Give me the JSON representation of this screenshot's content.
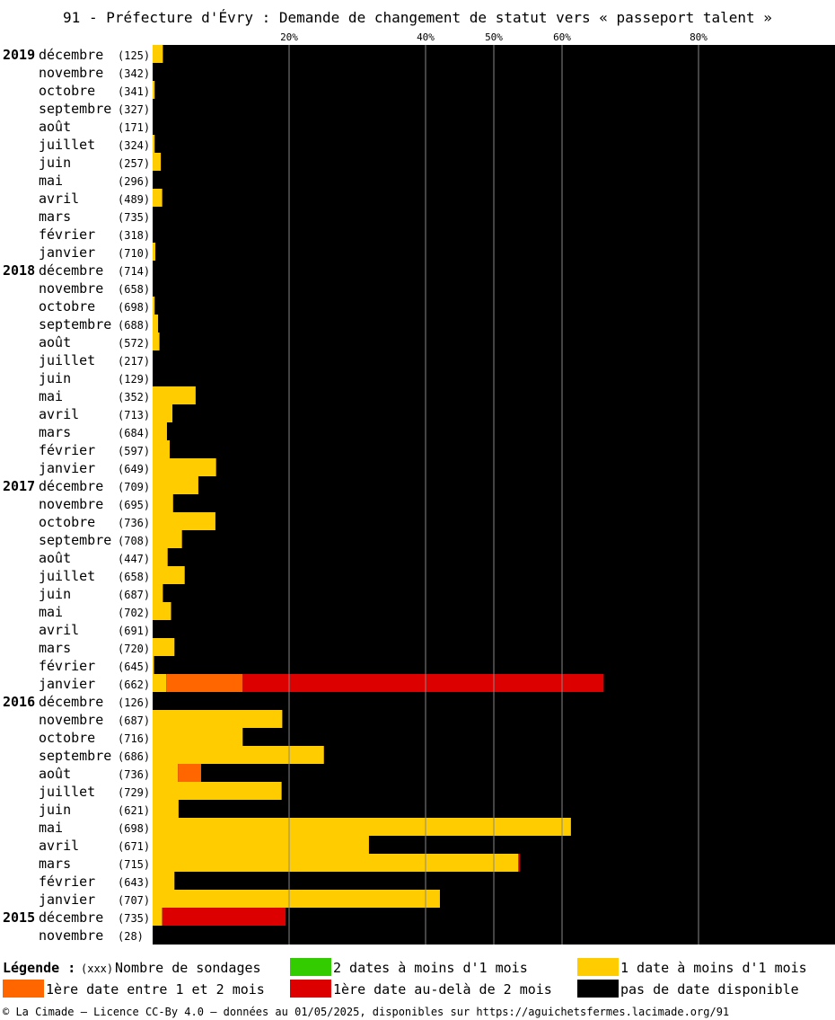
{
  "chart_data": {
    "type": "bar",
    "orientation": "horizontal",
    "stacked": true,
    "title": "91 - Préfecture d'Évry : Demande de changement de statut vers « passeport talent »",
    "x_ticks": [
      {
        "value": 20,
        "label": "20%"
      },
      {
        "value": 40,
        "label": "40%"
      },
      {
        "value": 50,
        "label": "50%"
      },
      {
        "value": 60,
        "label": "60%"
      },
      {
        "value": 80,
        "label": "80%"
      }
    ],
    "xlim": [
      0,
      100
    ],
    "grid": true,
    "segment_order": [
      "green",
      "yellow",
      "orange",
      "red"
    ],
    "colors": {
      "green": "#33cc00",
      "yellow": "#ffcc00",
      "orange": "#ff6600",
      "red": "#dd0000",
      "none": "#000000",
      "grid": "#888888"
    },
    "rows": [
      {
        "year": "2019",
        "month": "décembre",
        "count": "(125)",
        "green": 0,
        "yellow": 1.5,
        "orange": 0,
        "red": 0
      },
      {
        "year": "",
        "month": "novembre",
        "count": "(342)",
        "green": 0,
        "yellow": 0,
        "orange": 0,
        "red": 0
      },
      {
        "year": "",
        "month": "octobre",
        "count": "(341)",
        "green": 0,
        "yellow": 0.3,
        "orange": 0,
        "red": 0
      },
      {
        "year": "",
        "month": "septembre",
        "count": "(327)",
        "green": 0,
        "yellow": 0,
        "orange": 0,
        "red": 0
      },
      {
        "year": "",
        "month": "août",
        "count": "(171)",
        "green": 0,
        "yellow": 0,
        "orange": 0,
        "red": 0
      },
      {
        "year": "",
        "month": "juillet",
        "count": "(324)",
        "green": 0,
        "yellow": 0.3,
        "orange": 0,
        "red": 0
      },
      {
        "year": "",
        "month": "juin",
        "count": "(257)",
        "green": 0,
        "yellow": 1.2,
        "orange": 0,
        "red": 0
      },
      {
        "year": "",
        "month": "mai",
        "count": "(296)",
        "green": 0,
        "yellow": 0,
        "orange": 0,
        "red": 0
      },
      {
        "year": "",
        "month": "avril",
        "count": "(489)",
        "green": 0,
        "yellow": 1.4,
        "orange": 0,
        "red": 0
      },
      {
        "year": "",
        "month": "mars",
        "count": "(735)",
        "green": 0,
        "yellow": 0,
        "orange": 0,
        "red": 0
      },
      {
        "year": "",
        "month": "février",
        "count": "(318)",
        "green": 0,
        "yellow": 0,
        "orange": 0,
        "red": 0
      },
      {
        "year": "",
        "month": "janvier",
        "count": "(710)",
        "green": 0,
        "yellow": 0.4,
        "orange": 0,
        "red": 0
      },
      {
        "year": "2018",
        "month": "décembre",
        "count": "(714)",
        "green": 0,
        "yellow": 0,
        "orange": 0,
        "red": 0
      },
      {
        "year": "",
        "month": "novembre",
        "count": "(658)",
        "green": 0,
        "yellow": 0,
        "orange": 0,
        "red": 0
      },
      {
        "year": "",
        "month": "octobre",
        "count": "(698)",
        "green": 0,
        "yellow": 0.3,
        "orange": 0,
        "red": 0
      },
      {
        "year": "",
        "month": "septembre",
        "count": "(688)",
        "green": 0,
        "yellow": 0.8,
        "orange": 0,
        "red": 0
      },
      {
        "year": "",
        "month": "août",
        "count": "(572)",
        "green": 0,
        "yellow": 1.0,
        "orange": 0,
        "red": 0
      },
      {
        "year": "",
        "month": "juillet",
        "count": "(217)",
        "green": 0,
        "yellow": 0,
        "orange": 0,
        "red": 0
      },
      {
        "year": "",
        "month": "juin",
        "count": "(129)",
        "green": 0,
        "yellow": 0,
        "orange": 0,
        "red": 0
      },
      {
        "year": "",
        "month": "mai",
        "count": "(352)",
        "green": 0,
        "yellow": 6.3,
        "orange": 0,
        "red": 0
      },
      {
        "year": "",
        "month": "avril",
        "count": "(713)",
        "green": 0,
        "yellow": 2.9,
        "orange": 0,
        "red": 0
      },
      {
        "year": "",
        "month": "mars",
        "count": "(684)",
        "green": 0,
        "yellow": 2.1,
        "orange": 0,
        "red": 0
      },
      {
        "year": "",
        "month": "février",
        "count": "(597)",
        "green": 0,
        "yellow": 2.5,
        "orange": 0,
        "red": 0
      },
      {
        "year": "",
        "month": "janvier",
        "count": "(649)",
        "green": 0,
        "yellow": 9.3,
        "orange": 0,
        "red": 0
      },
      {
        "year": "2017",
        "month": "décembre",
        "count": "(709)",
        "green": 0,
        "yellow": 6.7,
        "orange": 0,
        "red": 0
      },
      {
        "year": "",
        "month": "novembre",
        "count": "(695)",
        "green": 0,
        "yellow": 3.0,
        "orange": 0,
        "red": 0
      },
      {
        "year": "",
        "month": "octobre",
        "count": "(736)",
        "green": 0,
        "yellow": 9.2,
        "orange": 0,
        "red": 0
      },
      {
        "year": "",
        "month": "septembre",
        "count": "(708)",
        "green": 0,
        "yellow": 4.3,
        "orange": 0,
        "red": 0
      },
      {
        "year": "",
        "month": "août",
        "count": "(447)",
        "green": 0,
        "yellow": 2.2,
        "orange": 0,
        "red": 0
      },
      {
        "year": "",
        "month": "juillet",
        "count": "(658)",
        "green": 0,
        "yellow": 4.7,
        "orange": 0,
        "red": 0
      },
      {
        "year": "",
        "month": "juin",
        "count": "(687)",
        "green": 0,
        "yellow": 1.5,
        "orange": 0,
        "red": 0
      },
      {
        "year": "",
        "month": "mai",
        "count": "(702)",
        "green": 0,
        "yellow": 2.7,
        "orange": 0,
        "red": 0
      },
      {
        "year": "",
        "month": "avril",
        "count": "(691)",
        "green": 0,
        "yellow": 0,
        "orange": 0,
        "red": 0
      },
      {
        "year": "",
        "month": "mars",
        "count": "(720)",
        "green": 0,
        "yellow": 3.2,
        "orange": 0,
        "red": 0
      },
      {
        "year": "",
        "month": "février",
        "count": "(645)",
        "green": 0,
        "yellow": 0.2,
        "orange": 0,
        "red": 0
      },
      {
        "year": "",
        "month": "janvier",
        "count": "(662)",
        "green": 0,
        "yellow": 2.0,
        "orange": 11.2,
        "red": 52.9
      },
      {
        "year": "2016",
        "month": "décembre",
        "count": "(126)",
        "green": 0,
        "yellow": 0,
        "orange": 0,
        "red": 0
      },
      {
        "year": "",
        "month": "novembre",
        "count": "(687)",
        "green": 0,
        "yellow": 19.0,
        "orange": 0,
        "red": 0
      },
      {
        "year": "",
        "month": "octobre",
        "count": "(716)",
        "green": 0,
        "yellow": 13.2,
        "orange": 0,
        "red": 0
      },
      {
        "year": "",
        "month": "septembre",
        "count": "(686)",
        "green": 0,
        "yellow": 25.1,
        "orange": 0,
        "red": 0
      },
      {
        "year": "",
        "month": "août",
        "count": "(736)",
        "green": 0,
        "yellow": 3.7,
        "orange": 3.4,
        "red": 0
      },
      {
        "year": "",
        "month": "juillet",
        "count": "(729)",
        "green": 0,
        "yellow": 18.9,
        "orange": 0,
        "red": 0
      },
      {
        "year": "",
        "month": "juin",
        "count": "(621)",
        "green": 0,
        "yellow": 3.8,
        "orange": 0,
        "red": 0
      },
      {
        "year": "",
        "month": "mai",
        "count": "(698)",
        "green": 0,
        "yellow": 61.3,
        "orange": 0,
        "red": 0
      },
      {
        "year": "",
        "month": "avril",
        "count": "(671)",
        "green": 0,
        "yellow": 31.7,
        "orange": 0,
        "red": 0
      },
      {
        "year": "",
        "month": "mars",
        "count": "(715)",
        "green": 0,
        "yellow": 53.6,
        "orange": 0,
        "red": 0.2
      },
      {
        "year": "",
        "month": "février",
        "count": "(643)",
        "green": 0,
        "yellow": 3.2,
        "orange": 0,
        "red": 0
      },
      {
        "year": "",
        "month": "janvier",
        "count": "(707)",
        "green": 0,
        "yellow": 42.1,
        "orange": 0,
        "red": 0
      },
      {
        "year": "2015",
        "month": "décembre",
        "count": "(735)",
        "green": 0,
        "yellow": 1.4,
        "orange": 0,
        "red": 18.1
      },
      {
        "year": "",
        "month": "novembre",
        "count": "(28)",
        "green": 0,
        "yellow": 0,
        "orange": 0,
        "red": 0
      }
    ],
    "legend": {
      "title": "Légende :",
      "count_marker": "(xxx)",
      "count_label": "Nombre de sondages",
      "items": [
        {
          "key": "green",
          "label": "2 dates à moins d'1 mois"
        },
        {
          "key": "yellow",
          "label": "1 date à moins d'1 mois"
        },
        {
          "key": "orange",
          "label": "1ère date entre 1 et 2 mois"
        },
        {
          "key": "red",
          "label": "1ère date au-delà de 2 mois"
        },
        {
          "key": "none",
          "label": "pas de date disponible"
        }
      ]
    },
    "footer": "© La Cimade — Licence CC-By 4.0 — données au 01/05/2025, disponibles sur https://aguichetsfermes.lacimade.org/91"
  }
}
